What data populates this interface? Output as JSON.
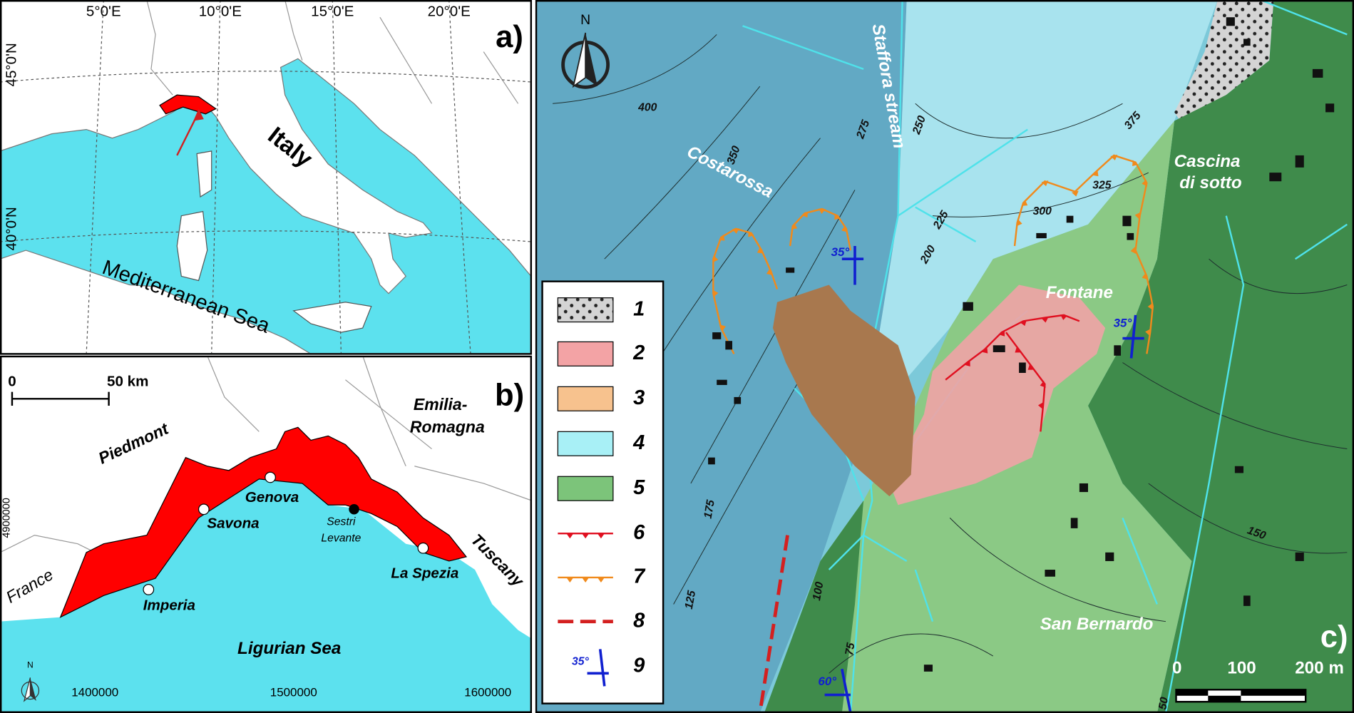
{
  "panel_a": {
    "label": "a)",
    "lon_labels": [
      "5°0'E",
      "10°0'E",
      "15°0'E",
      "20°0'E"
    ],
    "lat_labels": [
      "45°0'N",
      "40°0'N"
    ],
    "country": "Italy",
    "sea": "Mediterranean Sea"
  },
  "panel_b": {
    "label": "b)",
    "scale": [
      "0",
      "50 km"
    ],
    "regions": {
      "piedmont": "Piedmont",
      "emilia": [
        "Emilia-",
        "Romagna"
      ],
      "tuscany": "Tuscany",
      "france": "France"
    },
    "cities": {
      "genova": "Genova",
      "savona": "Savona",
      "imperia": "Imperia",
      "la_spezia": "La Spezia",
      "sestri": [
        "Sestri",
        "Levante"
      ]
    },
    "sea": "Ligurian Sea",
    "north": "N",
    "x_coords": [
      "1400000",
      "1500000",
      "1600000"
    ],
    "y_coord": "4900000"
  },
  "panel_c": {
    "label": "c)",
    "north": "N",
    "places": {
      "stream": "Staffora stream",
      "costarossa": "Costarossa",
      "cascina": [
        "Cascina",
        "di sotto"
      ],
      "fontane": "Fontane",
      "san_bernardo": "San Bernardo"
    },
    "contours": [
      "400",
      "350",
      "275",
      "250",
      "375",
      "325",
      "300",
      "225",
      "200",
      "175",
      "150",
      "125",
      "100",
      "75",
      "50"
    ],
    "dips": [
      "35°",
      "35°",
      "60°"
    ],
    "legend": [
      "1",
      "2",
      "3",
      "4",
      "5",
      "6",
      "7",
      "8",
      "9"
    ],
    "legend_dip": "35°",
    "scale": [
      "0",
      "100",
      "200 m"
    ]
  }
}
